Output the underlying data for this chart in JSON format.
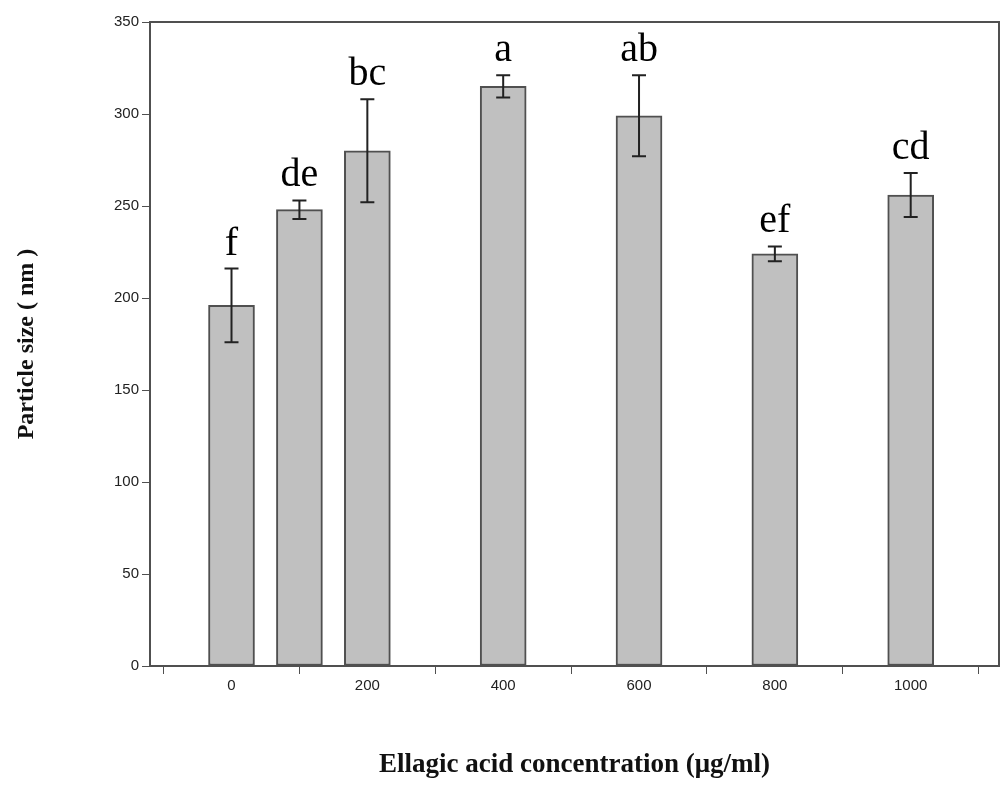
{
  "chart_data": {
    "type": "bar",
    "xlabel": "Ellagic acid concentration (μg/ml)",
    "ylabel": "Particle size ( nm )",
    "x": [
      0,
      100,
      200,
      400,
      600,
      800,
      1000
    ],
    "values": [
      196,
      248,
      280,
      315,
      299,
      224,
      256
    ],
    "errors": [
      20,
      5,
      28,
      6,
      22,
      4,
      12
    ],
    "color": "#c0c0c0",
    "xlim": [
      -120,
      1130
    ],
    "xticks": [
      0,
      200,
      400,
      600,
      800,
      1000
    ],
    "ylim": [
      0,
      350
    ],
    "yticks": [
      0,
      50,
      100,
      150,
      200,
      250,
      300,
      350
    ],
    "grid": false,
    "legend": false,
    "annotations": [
      "f",
      "de",
      "bc",
      "a",
      "ab",
      "ef",
      "cd"
    ]
  }
}
